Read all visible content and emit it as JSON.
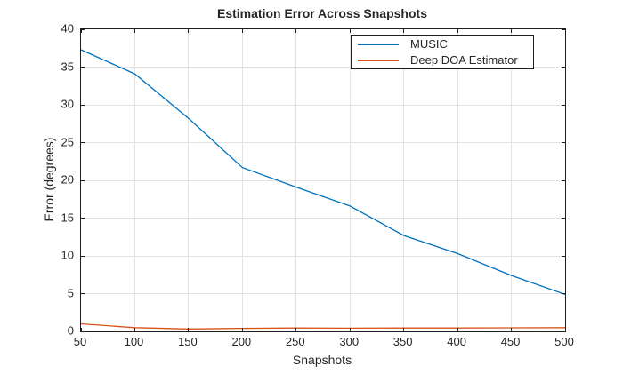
{
  "chart_data": {
    "type": "line",
    "title": "Estimation Error Across Snapshots",
    "xlabel": "Snapshots",
    "ylabel": "Error (degrees)",
    "xlim": [
      50,
      500
    ],
    "ylim": [
      0,
      40
    ],
    "x_ticks": [
      50,
      100,
      150,
      200,
      250,
      300,
      350,
      400,
      450,
      500
    ],
    "y_ticks": [
      0,
      5,
      10,
      15,
      20,
      25,
      30,
      35,
      40
    ],
    "grid": true,
    "legend_position": "top-right",
    "x": [
      50,
      100,
      150,
      200,
      250,
      300,
      350,
      400,
      450,
      500
    ],
    "series": [
      {
        "name": "MUSIC",
        "color": "#0072BD",
        "values": [
          37.3,
          34.1,
          28.2,
          21.7,
          19.1,
          16.6,
          12.7,
          10.3,
          7.4,
          4.9
        ]
      },
      {
        "name": "Deep DOA Estimator",
        "color": "#D95319",
        "values": [
          1.0,
          0.5,
          0.32,
          0.4,
          0.45,
          0.42,
          0.45,
          0.45,
          0.47,
          0.5
        ]
      }
    ],
    "colors": {
      "grid": "#E3E3E3",
      "axis_box": "#1F1F1F",
      "text": "#262626",
      "background": "#FFFFFF"
    }
  }
}
